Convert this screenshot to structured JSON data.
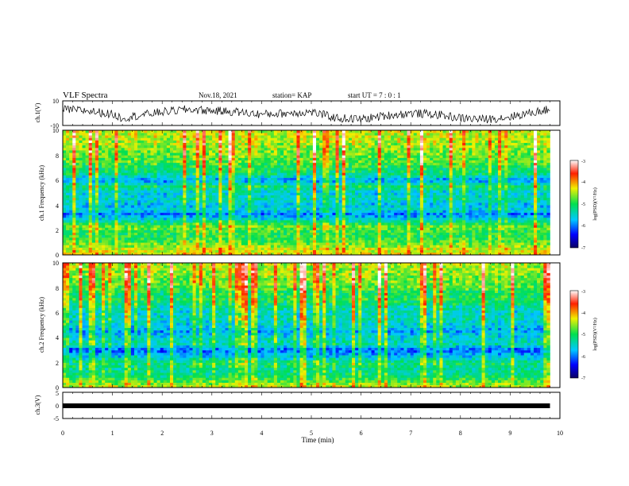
{
  "header": {
    "title": "VLF Spectra",
    "date": "Nov.18, 2021",
    "station": "station= KAP",
    "start_ut": "start UT =  7 : 0  : 1"
  },
  "chart_data": [
    {
      "type": "line",
      "panel": "ch1-waveform",
      "ylabel": "ch.1(V)",
      "ylim": [
        -10,
        10
      ],
      "y_ticks": [
        "10",
        "-10"
      ],
      "xlim": [
        0,
        10
      ],
      "x_data_end": 9.8,
      "series": [
        {
          "x": [
            0.0,
            0.5,
            1.0,
            1.2,
            1.5,
            2.0,
            2.5,
            3.0,
            3.5,
            4.0,
            4.5,
            5.0,
            5.5,
            6.0,
            6.5,
            7.0,
            7.5,
            8.0,
            8.5,
            9.0,
            9.5,
            9.8
          ],
          "values": [
            3,
            2,
            -1,
            -4,
            -2,
            1,
            3,
            2,
            1,
            -1,
            0,
            1,
            -4,
            -5,
            -2,
            0,
            -1,
            -4,
            -5,
            -3,
            1,
            3
          ]
        }
      ]
    },
    {
      "type": "heatmap",
      "panel": "ch1-spectrogram",
      "ylabel": "ch.1 Frequency (kHz)",
      "ylim": [
        0,
        10
      ],
      "y_ticks": [
        "0",
        "2",
        "4",
        "6",
        "8",
        "10"
      ],
      "xlim": [
        0,
        10
      ],
      "x_data_end": 9.8,
      "colorbar": {
        "label": "log(PSD)(V²/Hz)",
        "range": [
          -7,
          -3
        ],
        "ticks": [
          "-3",
          "-4",
          "-5",
          "-6",
          "-7"
        ]
      },
      "band_profile_khz": [
        [
          0.0,
          -4.3
        ],
        [
          0.5,
          -4.4
        ],
        [
          1.0,
          -4.8
        ],
        [
          1.5,
          -5.0
        ],
        [
          2.0,
          -4.9
        ],
        [
          2.2,
          -4.6
        ],
        [
          2.5,
          -5.0
        ],
        [
          3.0,
          -5.7
        ],
        [
          3.3,
          -6.0
        ],
        [
          3.6,
          -5.5
        ],
        [
          4.0,
          -5.7
        ],
        [
          4.5,
          -5.4
        ],
        [
          5.0,
          -5.6
        ],
        [
          5.5,
          -5.1
        ],
        [
          6.0,
          -5.9
        ],
        [
          6.5,
          -5.2
        ],
        [
          7.0,
          -5.0
        ],
        [
          7.5,
          -4.8
        ],
        [
          8.0,
          -4.7
        ],
        [
          9.0,
          -4.5
        ],
        [
          10.0,
          -4.4
        ]
      ]
    },
    {
      "type": "heatmap",
      "panel": "ch2-spectrogram",
      "ylabel": "ch.2 Frequency (kHz)",
      "ylim": [
        0,
        10
      ],
      "y_ticks": [
        "0",
        "2",
        "4",
        "6",
        "8",
        "10"
      ],
      "xlim": [
        0,
        10
      ],
      "x_data_end": 9.8,
      "colorbar": {
        "label": "log(PSD)(V²/Hz)",
        "range": [
          -7,
          -3
        ],
        "ticks": [
          "-3",
          "-4",
          "-5",
          "-6",
          "-7"
        ]
      },
      "band_profile_khz": [
        [
          0.0,
          -4.4
        ],
        [
          0.5,
          -4.8
        ],
        [
          1.0,
          -5.2
        ],
        [
          1.5,
          -5.3
        ],
        [
          2.0,
          -5.1
        ],
        [
          2.5,
          -5.7
        ],
        [
          3.0,
          -6.1
        ],
        [
          3.5,
          -5.4
        ],
        [
          4.0,
          -5.5
        ],
        [
          4.5,
          -5.8
        ],
        [
          5.0,
          -5.6
        ],
        [
          5.5,
          -5.4
        ],
        [
          6.0,
          -5.5
        ],
        [
          6.5,
          -5.3
        ],
        [
          7.0,
          -5.0
        ],
        [
          7.5,
          -5.1
        ],
        [
          8.0,
          -4.8
        ],
        [
          9.0,
          -4.6
        ],
        [
          10.0,
          -4.5
        ]
      ]
    },
    {
      "type": "line",
      "panel": "ch3-waveform",
      "ylabel": "ch.3(V)",
      "ylim": [
        -5,
        5
      ],
      "y_ticks": [
        "5",
        "0",
        "-5"
      ],
      "xlim": [
        0,
        10
      ],
      "x_data_end": 9.8,
      "series": [
        {
          "x": [
            0,
            9.8
          ],
          "values": [
            0,
            0
          ]
        }
      ]
    }
  ],
  "x_axis": {
    "label": "Time (min)",
    "ticks": [
      "0",
      "1",
      "2",
      "3",
      "4",
      "5",
      "6",
      "7",
      "8",
      "9",
      "10"
    ]
  }
}
